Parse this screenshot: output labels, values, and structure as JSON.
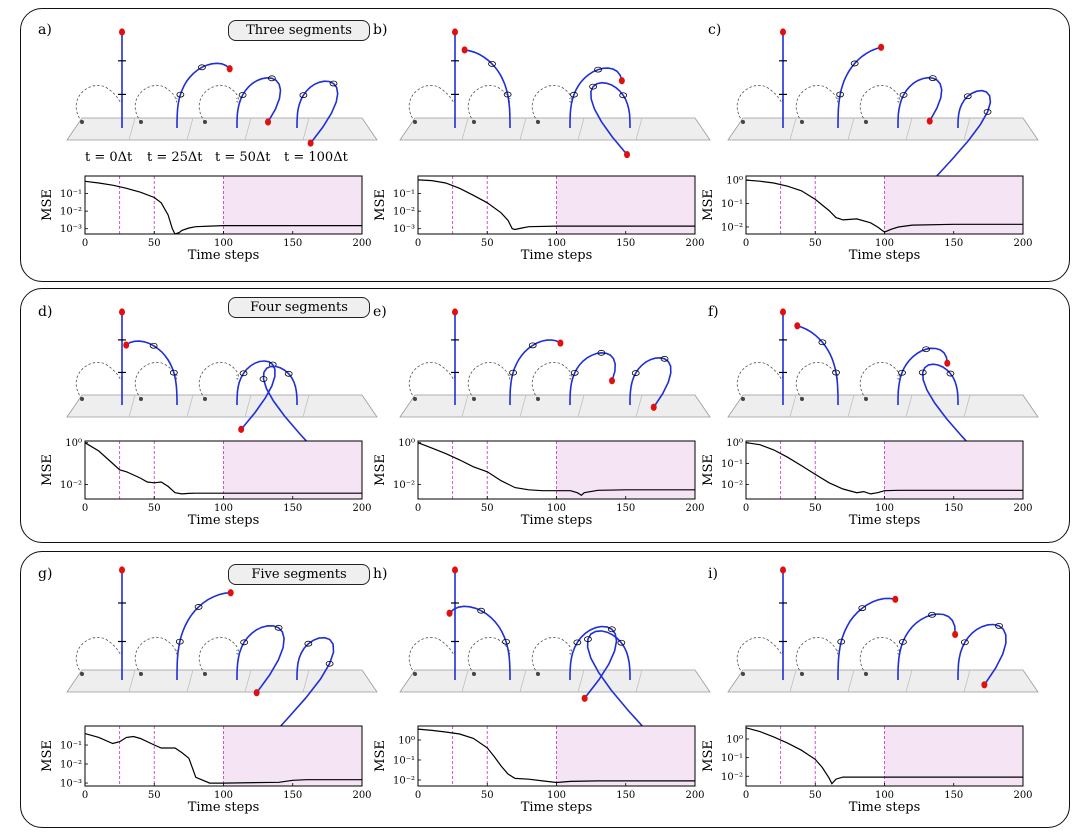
{
  "groups": [
    {
      "title": "Three segments"
    },
    {
      "title": "Four segments"
    },
    {
      "title": "Five segments"
    }
  ],
  "time_labels": [
    "t = 0Δt",
    "t = 25Δt",
    "t = 50Δt",
    "t = 100Δt"
  ],
  "colors": {
    "rod": "#1f2fd6",
    "tip": "#e01010",
    "target": "#444444",
    "shade": "#f4e4f4",
    "marker": "#cc44cc"
  },
  "chart_data": [
    {
      "panel": "a)",
      "type": "line",
      "xlabel": "Time steps",
      "ylabel": "MSE",
      "xlim": [
        0,
        200
      ],
      "ylim": [
        0.0005,
        1
      ],
      "yticks": [
        0.1,
        0.01,
        0.001
      ],
      "ytick_labels": [
        "10⁻¹",
        "10⁻²",
        "10⁻³"
      ],
      "xticks": [
        0,
        50,
        100,
        150,
        200
      ],
      "vlines": [
        25,
        50,
        100
      ],
      "shaded": [
        100,
        200
      ],
      "x": [
        0,
        10,
        20,
        30,
        40,
        50,
        55,
        60,
        63,
        65,
        68,
        70,
        75,
        80,
        90,
        100,
        120,
        150,
        200
      ],
      "y": [
        0.5,
        0.4,
        0.3,
        0.2,
        0.12,
        0.06,
        0.03,
        0.006,
        0.001,
        0.0005,
        0.0006,
        0.0008,
        0.0011,
        0.0013,
        0.0014,
        0.0015,
        0.0015,
        0.0015,
        0.0015
      ]
    },
    {
      "panel": "b)",
      "type": "line",
      "xlabel": "Time steps",
      "ylabel": "MSE",
      "xlim": [
        0,
        200
      ],
      "ylim": [
        0.0005,
        1
      ],
      "yticks": [
        0.1,
        0.01,
        0.001
      ],
      "ytick_labels": [
        "10⁻¹",
        "10⁻²",
        "10⁻³"
      ],
      "xticks": [
        0,
        50,
        100,
        150,
        200
      ],
      "vlines": [
        25,
        50,
        100
      ],
      "shaded": [
        100,
        200
      ],
      "x": [
        0,
        10,
        20,
        30,
        40,
        50,
        60,
        65,
        68,
        70,
        75,
        80,
        100,
        150,
        200
      ],
      "y": [
        0.6,
        0.55,
        0.4,
        0.2,
        0.08,
        0.03,
        0.008,
        0.003,
        0.001,
        0.0009,
        0.0011,
        0.0013,
        0.0014,
        0.0014,
        0.0014
      ]
    },
    {
      "panel": "c)",
      "type": "line",
      "xlabel": "Time steps",
      "ylabel": "MSE",
      "xlim": [
        0,
        200
      ],
      "ylim": [
        0.005,
        1.5
      ],
      "yticks": [
        1,
        0.1,
        0.01
      ],
      "ytick_labels": [
        "10⁰",
        "10⁻¹",
        "10⁻²"
      ],
      "xticks": [
        0,
        50,
        100,
        150,
        200
      ],
      "vlines": [
        25,
        50,
        100
      ],
      "shaded": [
        100,
        200
      ],
      "x": [
        0,
        10,
        20,
        30,
        40,
        50,
        60,
        65,
        70,
        80,
        90,
        95,
        100,
        105,
        110,
        120,
        150,
        200
      ],
      "y": [
        1.0,
        0.9,
        0.75,
        0.55,
        0.35,
        0.15,
        0.05,
        0.025,
        0.02,
        0.022,
        0.015,
        0.01,
        0.006,
        0.008,
        0.01,
        0.012,
        0.013,
        0.013
      ]
    },
    {
      "panel": "d)",
      "type": "line",
      "xlabel": "Time steps",
      "ylabel": "MSE",
      "xlim": [
        0,
        200
      ],
      "ylim": [
        0.002,
        1.2
      ],
      "yticks": [
        1,
        0.01
      ],
      "ytick_labels": [
        "10⁰",
        "10⁻²"
      ],
      "xticks": [
        0,
        50,
        100,
        150,
        200
      ],
      "vlines": [
        25,
        50,
        100
      ],
      "shaded": [
        100,
        200
      ],
      "x": [
        0,
        10,
        20,
        25,
        30,
        40,
        45,
        50,
        55,
        60,
        65,
        70,
        75,
        80,
        90,
        100,
        150,
        200
      ],
      "y": [
        1.0,
        0.4,
        0.1,
        0.05,
        0.04,
        0.02,
        0.013,
        0.012,
        0.013,
        0.008,
        0.004,
        0.0035,
        0.0037,
        0.0038,
        0.0038,
        0.0038,
        0.0038,
        0.0038
      ]
    },
    {
      "panel": "e)",
      "type": "line",
      "xlabel": "Time steps",
      "ylabel": "MSE",
      "xlim": [
        0,
        200
      ],
      "ylim": [
        0.002,
        1.2
      ],
      "yticks": [
        1,
        0.01
      ],
      "ytick_labels": [
        "10⁰",
        "10⁻²"
      ],
      "xticks": [
        0,
        50,
        100,
        150,
        200
      ],
      "vlines": [
        25,
        50,
        100
      ],
      "shaded": [
        100,
        200
      ],
      "x": [
        0,
        10,
        20,
        30,
        40,
        50,
        60,
        70,
        80,
        90,
        100,
        110,
        115,
        118,
        120,
        130,
        150,
        200
      ],
      "y": [
        1.0,
        0.55,
        0.3,
        0.15,
        0.07,
        0.04,
        0.015,
        0.007,
        0.0055,
        0.005,
        0.005,
        0.005,
        0.004,
        0.003,
        0.004,
        0.0052,
        0.0055,
        0.0055
      ]
    },
    {
      "panel": "f)",
      "type": "line",
      "xlabel": "Time steps",
      "ylabel": "MSE",
      "xlim": [
        0,
        200
      ],
      "ylim": [
        0.002,
        1.2
      ],
      "yticks": [
        1,
        0.1,
        0.01
      ],
      "ytick_labels": [
        "10⁰",
        "10⁻¹",
        "10⁻²"
      ],
      "xticks": [
        0,
        50,
        100,
        150,
        200
      ],
      "vlines": [
        25,
        50,
        100
      ],
      "shaded": [
        100,
        200
      ],
      "x": [
        0,
        10,
        20,
        30,
        40,
        50,
        60,
        70,
        80,
        85,
        90,
        95,
        100,
        110,
        150,
        200
      ],
      "y": [
        1.0,
        0.8,
        0.45,
        0.2,
        0.08,
        0.03,
        0.012,
        0.006,
        0.004,
        0.0045,
        0.0035,
        0.004,
        0.005,
        0.0052,
        0.0052,
        0.0052
      ]
    },
    {
      "panel": "g)",
      "type": "line",
      "xlabel": "Time steps",
      "ylabel": "MSE",
      "xlim": [
        0,
        200
      ],
      "ylim": [
        0.0007,
        1
      ],
      "yticks": [
        0.1,
        0.01,
        0.001
      ],
      "ytick_labels": [
        "10⁻¹",
        "10⁻²",
        "10⁻³"
      ],
      "xticks": [
        0,
        50,
        100,
        150,
        200
      ],
      "vlines": [
        25,
        50,
        100
      ],
      "shaded": [
        100,
        200
      ],
      "x": [
        0,
        10,
        20,
        25,
        30,
        35,
        40,
        50,
        55,
        60,
        65,
        70,
        75,
        80,
        90,
        100,
        140,
        150,
        160,
        200
      ],
      "y": [
        0.4,
        0.25,
        0.12,
        0.15,
        0.25,
        0.28,
        0.22,
        0.1,
        0.07,
        0.07,
        0.07,
        0.04,
        0.02,
        0.002,
        0.001,
        0.001,
        0.0011,
        0.0014,
        0.0015,
        0.0015
      ]
    },
    {
      "panel": "h)",
      "type": "line",
      "xlabel": "Time steps",
      "ylabel": "MSE",
      "xlim": [
        0,
        200
      ],
      "ylim": [
        0.005,
        5
      ],
      "yticks": [
        1,
        0.1,
        0.01
      ],
      "ytick_labels": [
        "10⁰",
        "10⁻¹",
        "10⁻²"
      ],
      "xticks": [
        0,
        50,
        100,
        150,
        200
      ],
      "vlines": [
        25,
        50,
        100
      ],
      "shaded": [
        100,
        200
      ],
      "x": [
        0,
        10,
        20,
        30,
        40,
        50,
        55,
        60,
        65,
        70,
        80,
        90,
        100,
        110,
        130,
        150,
        200
      ],
      "y": [
        3.5,
        3.0,
        2.5,
        2.0,
        1.2,
        0.4,
        0.15,
        0.05,
        0.02,
        0.012,
        0.011,
        0.009,
        0.0075,
        0.0085,
        0.009,
        0.009,
        0.009
      ]
    },
    {
      "panel": "i)",
      "type": "line",
      "xlabel": "Time steps",
      "ylabel": "MSE",
      "xlim": [
        0,
        200
      ],
      "ylim": [
        0.003,
        5
      ],
      "yticks": [
        1,
        0.1,
        0.01
      ],
      "ytick_labels": [
        "10⁰",
        "10⁻¹",
        "10⁻²"
      ],
      "xticks": [
        0,
        50,
        100,
        150,
        200
      ],
      "vlines": [
        25,
        50,
        100
      ],
      "shaded": [
        100,
        200
      ],
      "x": [
        0,
        10,
        20,
        30,
        40,
        50,
        55,
        60,
        62,
        65,
        70,
        80,
        100,
        150,
        200
      ],
      "y": [
        4.0,
        2.5,
        1.3,
        0.6,
        0.25,
        0.08,
        0.03,
        0.008,
        0.004,
        0.007,
        0.009,
        0.009,
        0.009,
        0.009,
        0.009
      ]
    }
  ]
}
